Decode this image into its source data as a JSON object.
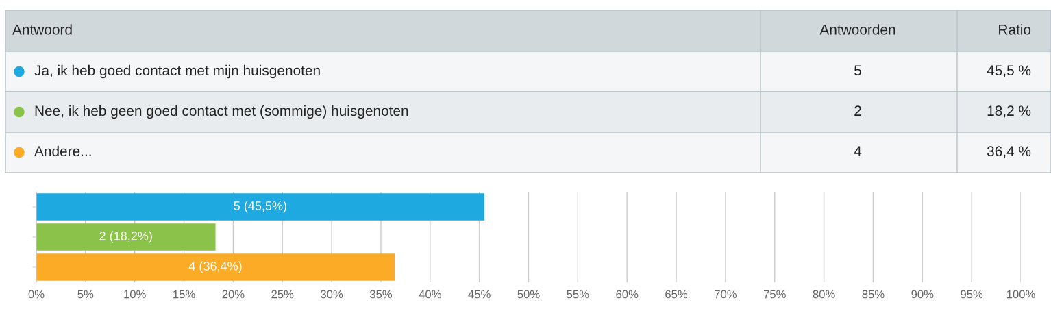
{
  "chart_data": {
    "type": "bar",
    "orientation": "horizontal",
    "categories": [
      null,
      null,
      null
    ],
    "values": [
      45.5,
      18.2,
      36.4
    ],
    "colors": [
      "#1ea9e1",
      "#8bc34a",
      "#fbab25"
    ],
    "value_labels": [
      "5 (45,5%)",
      "2 (18,2%)",
      "4 (36,4%)"
    ],
    "annotations": [
      "Antwoord",
      "Antwoorden",
      "Ratio",
      "Ja, ik heb goed contact met mijn huisgenoten",
      "5",
      "45,5 %",
      "Nee, ik heb geen goed contact met (sommige) huisgenoten",
      "2",
      "18,2 %",
      "Andere...",
      "4",
      "36,4 %"
    ],
    "xlim": [
      0,
      100
    ],
    "xticks": [
      {
        "value": 0,
        "label": "0%"
      },
      {
        "value": 5,
        "label": "5%"
      },
      {
        "value": 10,
        "label": "10%"
      },
      {
        "value": 15,
        "label": "15%"
      },
      {
        "value": 20,
        "label": "20%"
      },
      {
        "value": 25,
        "label": "25%"
      },
      {
        "value": 30,
        "label": "30%"
      },
      {
        "value": 35,
        "label": "35%"
      },
      {
        "value": 40,
        "label": "40%"
      },
      {
        "value": 45,
        "label": "45%"
      },
      {
        "value": 50,
        "label": "50%"
      },
      {
        "value": 55,
        "label": "55%"
      },
      {
        "value": 60,
        "label": "60%"
      },
      {
        "value": 65,
        "label": "65%"
      },
      {
        "value": 70,
        "label": "70%"
      },
      {
        "value": 75,
        "label": "75%"
      },
      {
        "value": 80,
        "label": "80%"
      },
      {
        "value": 85,
        "label": "85%"
      },
      {
        "value": 90,
        "label": "90%"
      },
      {
        "value": 95,
        "label": "95%"
      },
      {
        "value": 100,
        "label": "100%"
      }
    ],
    "grid": "x",
    "tick_labels": "x"
  }
}
